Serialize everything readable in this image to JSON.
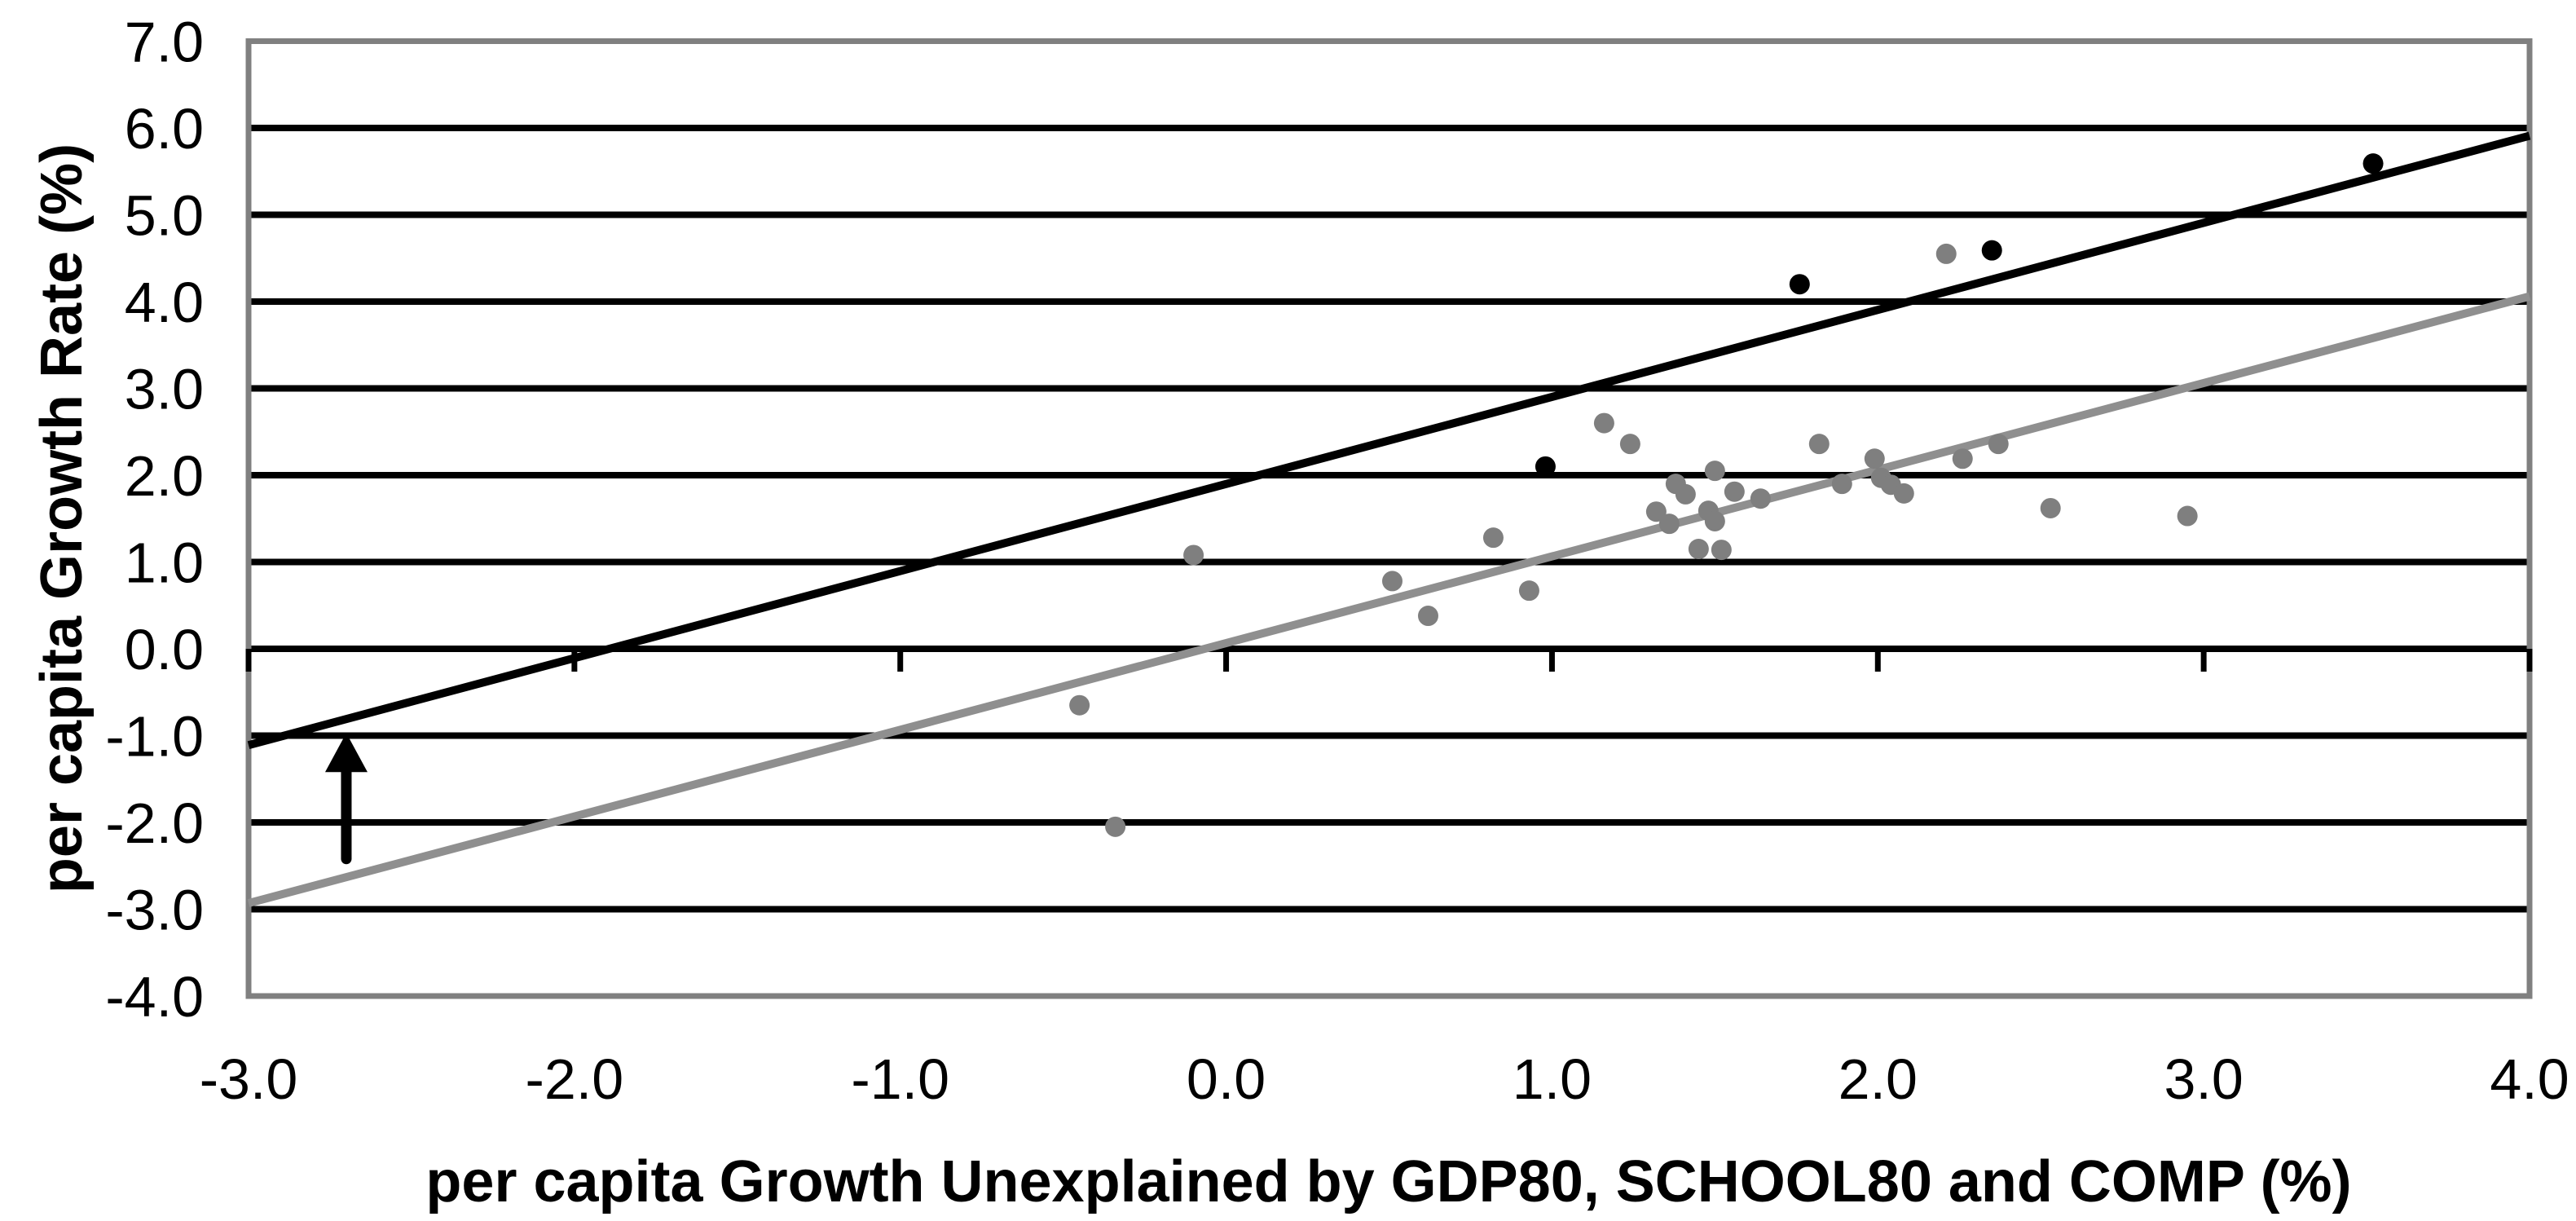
{
  "chart_data": {
    "type": "scatter",
    "title": "",
    "xlabel": "per capita Growth Unexplained by GDP80, SCHOOL80 and COMP (%)",
    "ylabel": "per capita Growth Rate (%)",
    "xlim": [
      -3.0,
      4.0
    ],
    "ylim": [
      -4.0,
      7.0
    ],
    "x_tick_values": [
      -3,
      -2,
      -1,
      0,
      1,
      2,
      3,
      4
    ],
    "x_tick_labels": [
      "-3.0",
      "-2.0",
      "-1.0",
      "0.0",
      "1.0",
      "2.0",
      "3.0",
      "4.0"
    ],
    "y_tick_values": [
      7,
      6,
      5,
      4,
      3,
      2,
      1,
      0,
      -1,
      -2,
      -3,
      -4
    ],
    "y_tick_labels": [
      "7.0",
      "6.0",
      "5.0",
      "4.0",
      "3.0",
      "2.0",
      "1.0",
      "0.0",
      "-1.0",
      "-2.0",
      "-3.0",
      "-4.0"
    ],
    "grid": {
      "orientation": "horizontal",
      "values": [
        6,
        5,
        4,
        3,
        2,
        1,
        0,
        -1,
        -2,
        -3
      ],
      "color": "#000000"
    },
    "axis_line_y": 0,
    "border_color": "#808080",
    "background_color": "#ffffff",
    "legend": null,
    "series": [
      {
        "name": "growth-observations-gray",
        "marker": "circle",
        "color": "#7f7f7f",
        "points": [
          [
            -0.45,
            -0.65
          ],
          [
            -0.34,
            -2.05
          ],
          [
            -0.1,
            1.08
          ],
          [
            0.51,
            0.78
          ],
          [
            0.62,
            0.38
          ],
          [
            0.82,
            1.28
          ],
          [
            0.93,
            0.67
          ],
          [
            1.16,
            2.6
          ],
          [
            1.24,
            2.36
          ],
          [
            1.32,
            1.58
          ],
          [
            1.36,
            1.44
          ],
          [
            1.38,
            1.9
          ],
          [
            1.41,
            1.78
          ],
          [
            1.45,
            1.15
          ],
          [
            1.48,
            1.59
          ],
          [
            1.5,
            2.05
          ],
          [
            1.5,
            1.47
          ],
          [
            1.52,
            1.14
          ],
          [
            1.56,
            1.81
          ],
          [
            1.64,
            1.73
          ],
          [
            1.82,
            2.36
          ],
          [
            1.89,
            1.9
          ],
          [
            1.99,
            2.19
          ],
          [
            2.01,
            1.97
          ],
          [
            2.04,
            1.89
          ],
          [
            2.08,
            1.79
          ],
          [
            2.21,
            4.55
          ],
          [
            2.26,
            2.19
          ],
          [
            2.37,
            2.36
          ],
          [
            2.53,
            1.62
          ],
          [
            2.95,
            1.53
          ]
        ]
      },
      {
        "name": "growth-observations-black",
        "marker": "circle",
        "color": "#000000",
        "points": [
          [
            0.98,
            2.1
          ],
          [
            1.76,
            4.2
          ],
          [
            2.35,
            4.59
          ],
          [
            3.52,
            5.59
          ]
        ]
      }
    ],
    "trend_lines": [
      {
        "name": "upper-trend-line",
        "color": "#000000",
        "points": [
          [
            -3.0,
            -1.11
          ],
          [
            4.0,
            5.91
          ]
        ]
      },
      {
        "name": "lower-trend-line",
        "color": "#8f8f8f",
        "points": [
          [
            -3.0,
            -2.93
          ],
          [
            4.0,
            4.06
          ]
        ]
      }
    ],
    "annotations": [
      {
        "type": "arrow",
        "direction": "up",
        "color": "#000000",
        "x": -2.7,
        "y_from": -2.42,
        "y_to": -0.97
      }
    ]
  }
}
